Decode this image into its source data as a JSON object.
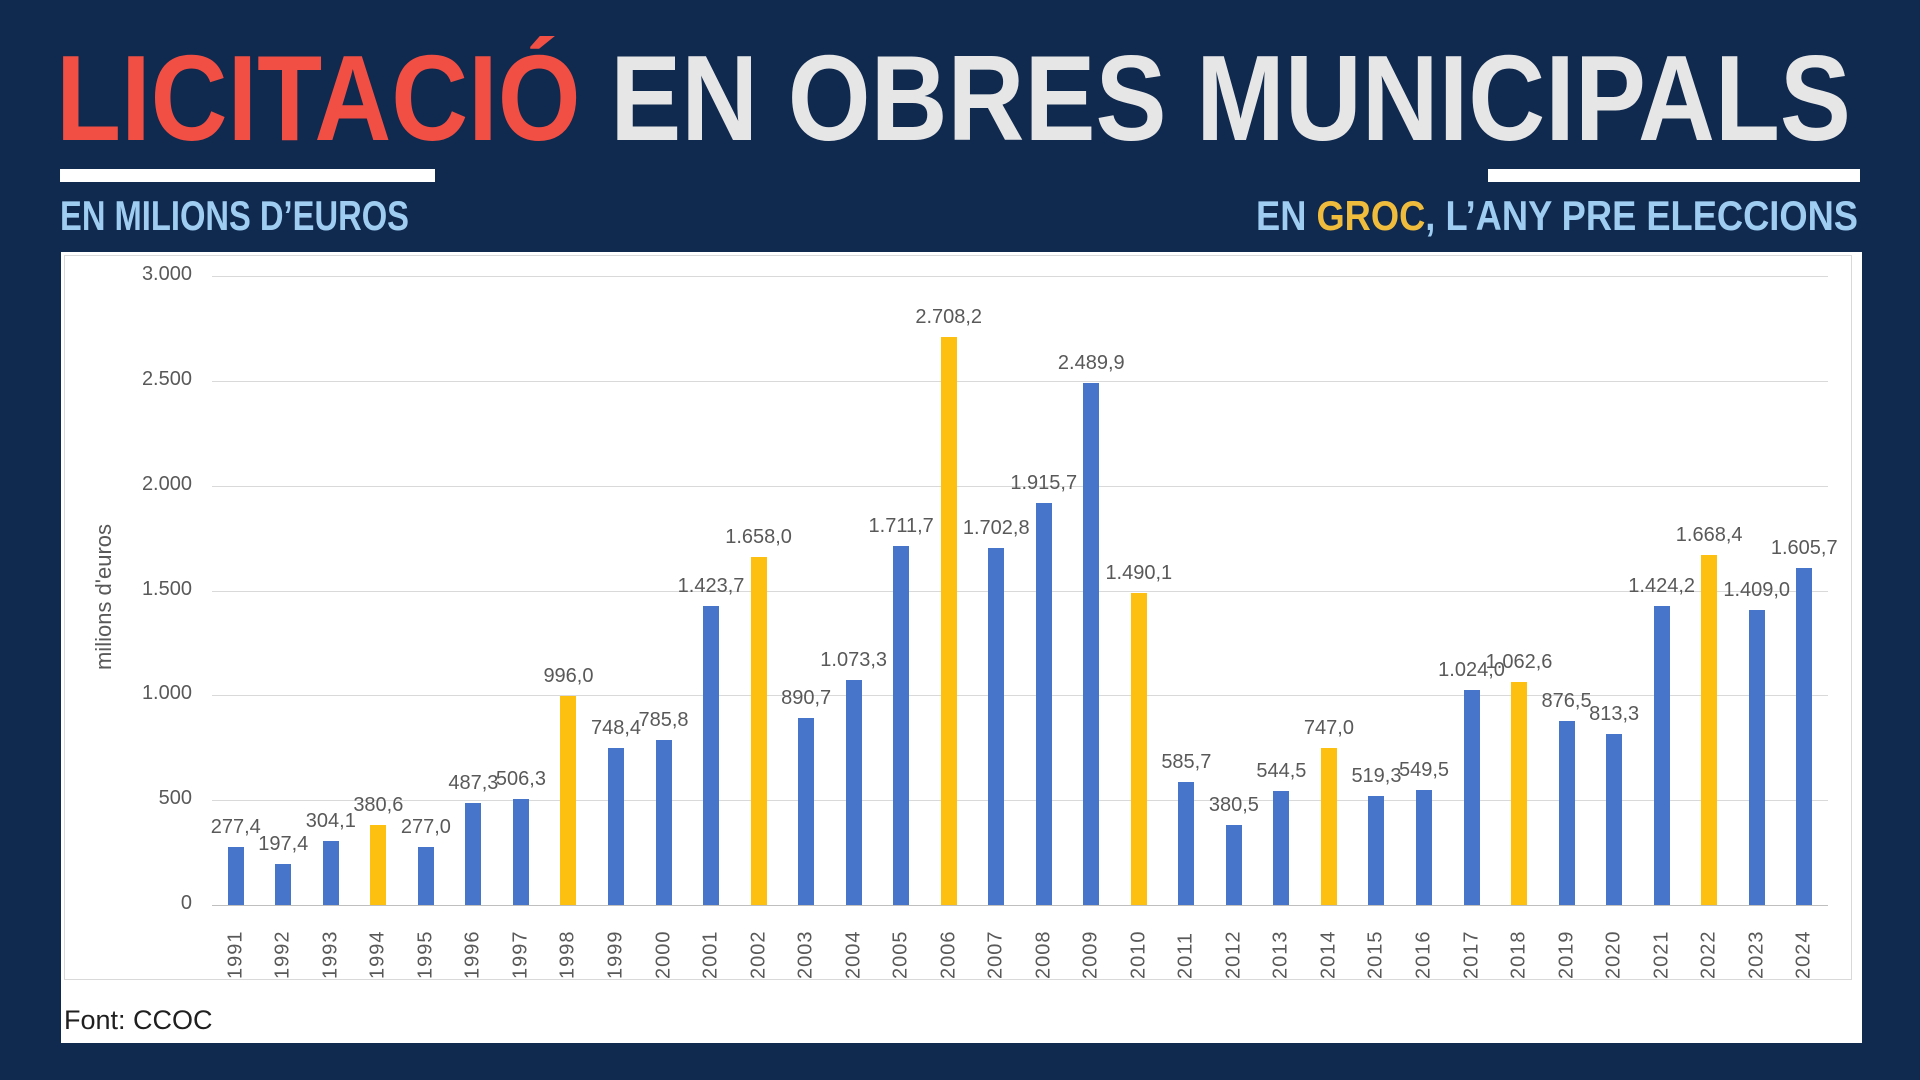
{
  "header": {
    "title_red": "LICITACIÓ",
    "title_rest": " EN OBRES MUNICIPALS",
    "subtitle_left": "EN MILIONS D’EUROS",
    "subtitle_right_prefix": "EN ",
    "subtitle_right_highlight": "GROC",
    "subtitle_right_suffix": ", L’ANY PRE ELECCIONS",
    "colors": {
      "background_navy": "#10294f",
      "title_red": "#f14f43",
      "title_light": "#e6e6e6",
      "subtitle_blue": "#9fcdf1",
      "highlight_yellow": "#f0bc3c"
    }
  },
  "chart_data": {
    "type": "bar",
    "title": "",
    "xlabel": "",
    "ylabel": "milions d'euros",
    "ylim": [
      0,
      3000
    ],
    "yticks": [
      0,
      500,
      1000,
      1500,
      2000,
      2500,
      3000
    ],
    "ytick_labels": [
      "0",
      "500",
      "1.000",
      "1.500",
      "2.000",
      "2.500",
      "3.000"
    ],
    "grid": true,
    "legend": "none",
    "categories": [
      1991,
      1992,
      1993,
      1994,
      1995,
      1996,
      1997,
      1998,
      1999,
      2000,
      2001,
      2002,
      2003,
      2004,
      2005,
      2006,
      2007,
      2008,
      2009,
      2010,
      2011,
      2012,
      2013,
      2014,
      2015,
      2016,
      2017,
      2018,
      2019,
      2020,
      2021,
      2022,
      2023,
      2024
    ],
    "values": [
      277.4,
      197.4,
      304.1,
      380.6,
      277.0,
      487.3,
      506.3,
      996.0,
      748.4,
      785.8,
      1423.7,
      1658.0,
      890.7,
      1073.3,
      1711.7,
      2708.2,
      1702.8,
      1915.7,
      2489.9,
      1490.1,
      585.7,
      380.5,
      544.5,
      747.0,
      519.3,
      549.5,
      1024.0,
      1062.6,
      876.5,
      813.3,
      1424.2,
      1668.4,
      1409.0,
      1605.7
    ],
    "labels": [
      "277,4",
      "197,4",
      "304,1",
      "380,6",
      "277,0",
      "487,3",
      "506,3",
      "996,0",
      "748,4",
      "785,8",
      "1.423,7",
      "1.658,0",
      "890,7",
      "1.073,3",
      "1.711,7",
      "2.708,2",
      "1.702,8",
      "1.915,7",
      "2.489,9",
      "1.490,1",
      "585,7",
      "380,5",
      "544,5",
      "747,0",
      "519,3",
      "549,5",
      "1.024,0",
      "1.062,6",
      "876,5",
      "813,3",
      "1.424,2",
      "1.668,4",
      "1.409,0",
      "1.605,7"
    ],
    "pre_election_years": [
      1994,
      1998,
      2002,
      2006,
      2010,
      2014,
      2018,
      2022
    ],
    "bar_color_default": "#4675c9",
    "bar_color_highlight": "#fdc010",
    "label_color": "#595959",
    "gridline_color": "#d9d9d9"
  },
  "footer": {
    "source": "Font: CCOC"
  }
}
